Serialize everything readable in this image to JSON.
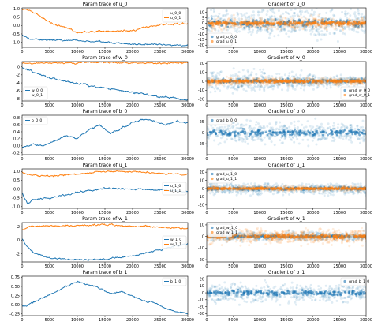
{
  "colors": {
    "blue": "#1f77b4",
    "orange": "#ff7f0e"
  },
  "chart_data": [
    {
      "type": "line",
      "title": "Param trace of u_0",
      "legend": "top-right",
      "grid": false,
      "xlim": [
        0,
        30000
      ],
      "ylim": [
        -1.3,
        1.05
      ],
      "xticks": [
        0,
        5000,
        10000,
        15000,
        20000,
        25000,
        30000
      ],
      "xtick_labels": [
        "0",
        "5000",
        "10000",
        "15000",
        "20000",
        "25000",
        "30000"
      ],
      "yticks": [
        1.0,
        0.5,
        0.0,
        -0.5,
        -1.0
      ],
      "ytick_labels": [
        "1.0",
        "0.5",
        "0.0",
        "-0.5",
        "-1.0"
      ],
      "series": [
        {
          "name": "u_0_0",
          "color": "#1f77b4",
          "x": [
            0,
            1000,
            2000,
            5000,
            10000,
            15000,
            20000,
            25000,
            30000
          ],
          "y": [
            -0.55,
            -0.75,
            -0.8,
            -0.85,
            -0.9,
            -1.0,
            -1.1,
            -1.15,
            -1.2
          ]
        },
        {
          "name": "u_0_1",
          "color": "#ff7f0e",
          "x": [
            0,
            1000,
            2000,
            5000,
            10000,
            15000,
            20000,
            25000,
            30000
          ],
          "y": [
            1.0,
            0.95,
            0.8,
            0.2,
            -0.4,
            -0.35,
            -0.3,
            0.05,
            0.1
          ]
        }
      ]
    },
    {
      "type": "scatter",
      "title": "Gradient of u_0",
      "legend": "bottom-left",
      "grid": false,
      "xlim": [
        0,
        30000
      ],
      "ylim": [
        -22,
        14
      ],
      "xticks": [
        0,
        5000,
        10000,
        15000,
        20000,
        25000,
        30000
      ],
      "xtick_labels": [
        "0",
        "5000",
        "10000",
        "15000",
        "20000",
        "25000",
        "30000"
      ],
      "yticks": [
        10,
        5,
        0,
        -5,
        -10,
        -15,
        -20
      ],
      "ytick_labels": [
        "10",
        "5",
        "0",
        "-5",
        "-10",
        "-15",
        "-20"
      ],
      "series": [
        {
          "name": "grad_u_0_0",
          "color": "#1f77b4",
          "center": 0,
          "spread": 10
        },
        {
          "name": "grad_u_0_1",
          "color": "#ff7f0e",
          "center": 0,
          "spread": 4
        }
      ]
    },
    {
      "type": "line",
      "title": "Param trace of w_0",
      "legend": "bottom-left",
      "grid": false,
      "xlim": [
        0,
        30000
      ],
      "ylim": [
        -8.5,
        1.3
      ],
      "xticks": [
        0,
        5000,
        10000,
        15000,
        20000,
        25000,
        30000
      ],
      "xtick_labels": [
        "0",
        "5000",
        "10000",
        "15000",
        "20000",
        "25000",
        "30000"
      ],
      "yticks": [
        0,
        -2,
        -4,
        -6,
        -8
      ],
      "ytick_labels": [
        "0",
        "-2",
        "-4",
        "-6",
        "-8"
      ],
      "series": [
        {
          "name": "w_0_0",
          "color": "#1f77b4",
          "x": [
            0,
            1000,
            2000,
            5000,
            10000,
            15000,
            20000,
            25000,
            30000
          ],
          "y": [
            0.0,
            -0.6,
            -1.3,
            -2.7,
            -4.2,
            -5.3,
            -6.4,
            -7.4,
            -8.2
          ]
        },
        {
          "name": "w_0_1",
          "color": "#ff7f0e",
          "x": [
            0,
            2000,
            5000,
            10000,
            15000,
            20000,
            25000,
            30000
          ],
          "y": [
            0.8,
            0.9,
            0.95,
            1.0,
            1.05,
            1.0,
            0.95,
            1.0
          ]
        }
      ]
    },
    {
      "type": "scatter",
      "title": "Gradient of w_0",
      "legend": "bottom-right",
      "grid": false,
      "xlim": [
        0,
        30000
      ],
      "ylim": [
        -22,
        22
      ],
      "xticks": [
        0,
        5000,
        10000,
        15000,
        20000,
        25000,
        30000
      ],
      "xtick_labels": [
        "0",
        "5000",
        "10000",
        "15000",
        "20000",
        "25000",
        "30000"
      ],
      "yticks": [
        20,
        10,
        0,
        -10,
        -20
      ],
      "ytick_labels": [
        "20",
        "10",
        "0",
        "-10",
        "-20"
      ],
      "series": [
        {
          "name": "grad_w_0_0",
          "color": "#1f77b4",
          "center": 0,
          "spread": 6,
          "decay": true
        },
        {
          "name": "grad_w_0_1",
          "color": "#ff7f0e",
          "center": 0,
          "spread": 3
        }
      ]
    },
    {
      "type": "line",
      "title": "Param trace of b_0",
      "legend": "top-left",
      "grid": false,
      "xlim": [
        0,
        30000
      ],
      "ylim": [
        -0.25,
        0.87
      ],
      "xticks": [
        0,
        5000,
        10000,
        15000,
        20000,
        25000,
        30000
      ],
      "xtick_labels": [
        "0",
        "5000",
        "10000",
        "15000",
        "20000",
        "25000",
        "30000"
      ],
      "yticks": [
        0.8,
        0.6,
        0.4,
        0.2,
        0.0,
        -0.2
      ],
      "ytick_labels": [
        "0.8",
        "0.6",
        "0.4",
        "0.2",
        "0.0",
        "-0.2"
      ],
      "series": [
        {
          "name": "b_0_0",
          "color": "#1f77b4",
          "x": [
            0,
            2000,
            4000,
            6000,
            8000,
            10000,
            12000,
            14000,
            16000,
            18000,
            20000,
            22000,
            24000,
            26000,
            28000,
            30000
          ],
          "y": [
            -0.05,
            0.05,
            0.0,
            0.15,
            0.3,
            0.2,
            0.45,
            0.6,
            0.35,
            0.5,
            0.65,
            0.75,
            0.7,
            0.6,
            0.7,
            0.65
          ]
        }
      ]
    },
    {
      "type": "scatter",
      "title": "Gradient of b_0",
      "legend": "top-left",
      "grid": false,
      "xlim": [
        0,
        30000
      ],
      "ylim": [
        -50,
        40
      ],
      "xticks": [
        0,
        5000,
        10000,
        15000,
        20000,
        25000,
        30000
      ],
      "xtick_labels": [
        "0",
        "5000",
        "10000",
        "15000",
        "20000",
        "25000",
        "30000"
      ],
      "yticks": [
        25,
        0,
        -25
      ],
      "ytick_labels": [
        "25",
        "0",
        "-25"
      ],
      "series": [
        {
          "name": "grad_b_0_0",
          "color": "#1f77b4",
          "center": 0,
          "spread": 18
        }
      ]
    },
    {
      "type": "line",
      "title": "Param trace of u_1",
      "legend": "right",
      "grid": false,
      "xlim": [
        0,
        30000
      ],
      "ylim": [
        -1.1,
        1.15
      ],
      "xticks": [
        0,
        5000,
        10000,
        15000,
        20000,
        25000,
        30000
      ],
      "xtick_labels": [
        "0",
        "5000",
        "10000",
        "15000",
        "20000",
        "25000",
        "30000"
      ],
      "yticks": [
        1.0,
        0.5,
        0.0,
        -0.5,
        -1.0
      ],
      "ytick_labels": [
        "1.0",
        "0.5",
        "0.0",
        "-0.5",
        "-1.0"
      ],
      "series": [
        {
          "name": "u_1_0",
          "color": "#1f77b4",
          "x": [
            0,
            1000,
            2000,
            5000,
            10000,
            15000,
            20000,
            25000,
            30000
          ],
          "y": [
            -0.2,
            -0.85,
            -0.6,
            -0.5,
            -0.2,
            0.05,
            0.0,
            -0.05,
            -0.15
          ]
        },
        {
          "name": "u_1_1",
          "color": "#ff7f0e",
          "x": [
            0,
            1000,
            2000,
            5000,
            10000,
            15000,
            20000,
            25000,
            30000
          ],
          "y": [
            0.95,
            0.85,
            0.8,
            0.75,
            0.85,
            1.0,
            1.0,
            0.9,
            0.8
          ]
        }
      ]
    },
    {
      "type": "scatter",
      "title": "Gradient of u_1",
      "legend": "top-left",
      "grid": false,
      "xlim": [
        0,
        30000
      ],
      "ylim": [
        -24,
        24
      ],
      "xticks": [
        0,
        5000,
        10000,
        15000,
        20000,
        25000,
        30000
      ],
      "xtick_labels": [
        "0",
        "5000",
        "10000",
        "15000",
        "20000",
        "25000",
        "30000"
      ],
      "yticks": [
        20,
        10,
        0,
        -10,
        -20
      ],
      "ytick_labels": [
        "20",
        "10",
        "0",
        "-10",
        "-20"
      ],
      "series": [
        {
          "name": "grad_u_1_0",
          "color": "#1f77b4",
          "center": 0,
          "spread": 5
        },
        {
          "name": "grad_u_1_1",
          "color": "#ff7f0e",
          "center": 0,
          "spread": 2
        }
      ]
    },
    {
      "type": "line",
      "title": "Param trace of w_1",
      "legend": "right",
      "grid": false,
      "xlim": [
        0,
        30000
      ],
      "ylim": [
        -3.2,
        2.6
      ],
      "xticks": [
        0,
        5000,
        10000,
        15000,
        20000,
        25000,
        30000
      ],
      "xtick_labels": [
        "0",
        "5000",
        "10000",
        "15000",
        "20000",
        "25000",
        "30000"
      ],
      "yticks": [
        2,
        0,
        -2
      ],
      "ytick_labels": [
        "2",
        "0",
        "-2"
      ],
      "series": [
        {
          "name": "w_1_0",
          "color": "#1f77b4",
          "x": [
            0,
            1000,
            2000,
            5000,
            10000,
            15000,
            20000,
            25000,
            30000
          ],
          "y": [
            0.2,
            -1.0,
            -1.8,
            -2.6,
            -2.9,
            -2.8,
            -2.3,
            -1.4,
            -0.5
          ]
        },
        {
          "name": "w_1_1",
          "color": "#ff7f0e",
          "x": [
            0,
            1000,
            2000,
            5000,
            10000,
            15000,
            20000,
            25000,
            30000
          ],
          "y": [
            1.6,
            1.9,
            2.0,
            2.1,
            2.2,
            2.3,
            2.1,
            1.9,
            1.7
          ]
        }
      ]
    },
    {
      "type": "scatter",
      "title": "Gradient of w_1",
      "legend": "top-left",
      "grid": false,
      "xlim": [
        0,
        30000
      ],
      "ylim": [
        -22,
        12
      ],
      "xticks": [
        0,
        5000,
        10000,
        15000,
        20000,
        25000,
        30000
      ],
      "xtick_labels": [
        "0",
        "5000",
        "10000",
        "15000",
        "20000",
        "25000",
        "30000"
      ],
      "yticks": [
        10,
        0,
        -10,
        -20
      ],
      "ytick_labels": [
        "10",
        "0",
        "-10",
        "-20"
      ],
      "series": [
        {
          "name": "grad_w_1_0",
          "color": "#1f77b4",
          "center": 0,
          "spread": 3
        },
        {
          "name": "grad_w_1_1",
          "color": "#ff7f0e",
          "center": 0,
          "spread": 5
        }
      ]
    },
    {
      "type": "line",
      "title": "Param trace of b_1",
      "legend": "top-right",
      "grid": false,
      "xlim": [
        0,
        30000
      ],
      "ylim": [
        -0.3,
        0.78
      ],
      "xticks": [
        0,
        5000,
        10000,
        15000,
        20000,
        25000,
        30000
      ],
      "xtick_labels": [
        "0",
        "5000",
        "10000",
        "15000",
        "20000",
        "25000",
        "30000"
      ],
      "yticks": [
        0.75,
        0.5,
        0.25,
        0.0,
        -0.25
      ],
      "ytick_labels": [
        "0.75",
        "0.50",
        "0.25",
        "0.00",
        "-0.25"
      ],
      "series": [
        {
          "name": "b_1_0",
          "color": "#1f77b4",
          "x": [
            0,
            2000,
            4000,
            6000,
            8000,
            10000,
            12000,
            14000,
            16000,
            18000,
            20000,
            22000,
            24000,
            26000,
            28000,
            30000
          ],
          "y": [
            -0.05,
            0.05,
            0.2,
            0.35,
            0.5,
            0.62,
            0.55,
            0.45,
            0.3,
            0.35,
            0.25,
            0.1,
            0.05,
            -0.1,
            -0.2,
            -0.25
          ]
        }
      ]
    },
    {
      "type": "scatter",
      "title": "Gradient of b_1",
      "legend": "top-right",
      "grid": false,
      "xlim": [
        0,
        30000
      ],
      "ylim": [
        -33,
        24
      ],
      "xticks": [
        0,
        5000,
        10000,
        15000,
        20000,
        25000,
        30000
      ],
      "xtick_labels": [
        "0",
        "5000",
        "10000",
        "15000",
        "20000",
        "25000",
        "30000"
      ],
      "yticks": [
        20,
        10,
        0,
        -10,
        -20,
        -30
      ],
      "ytick_labels": [
        "20",
        "10",
        "0",
        "-10",
        "-20",
        "-30"
      ],
      "series": [
        {
          "name": "grad_b_1_0",
          "color": "#1f77b4",
          "center": 0,
          "spread": 10
        }
      ]
    }
  ]
}
